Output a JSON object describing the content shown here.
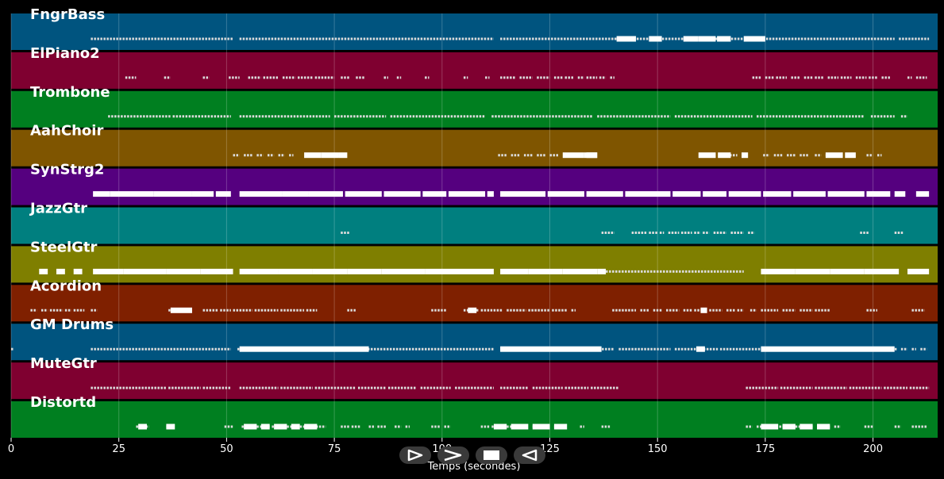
{
  "chart_data": {
    "type": "piano-roll",
    "xlabel": "Temps (secondes)",
    "xlim": [
      0,
      215
    ],
    "xticks": [
      0,
      25,
      50,
      75,
      100,
      125,
      150,
      175,
      200
    ],
    "grid": true,
    "tracks": [
      {
        "name": "FngrBass",
        "color": "#00547f",
        "segments": [
          [
            18.5,
            51.5
          ],
          [
            53,
            112
          ],
          [
            113.5,
            140
          ],
          [
            140,
            157
          ],
          [
            157.5,
            205
          ],
          [
            206,
            213
          ]
        ],
        "long": [
          [
            140.5,
            145
          ],
          [
            148,
            151
          ],
          [
            156,
            159.5
          ],
          [
            159.5,
            163.5
          ],
          [
            163.8,
            167
          ],
          [
            170,
            175
          ]
        ]
      },
      {
        "name": "ElPiano2",
        "color": "#7f0030",
        "segments": [
          [
            26.5,
            29
          ],
          [
            35.5,
            37
          ],
          [
            44.5,
            46
          ],
          [
            50.5,
            53
          ],
          [
            55,
            58
          ],
          [
            58.5,
            62
          ],
          [
            63,
            66
          ],
          [
            66.5,
            70
          ],
          [
            70.5,
            75
          ],
          [
            76.5,
            78.5
          ],
          [
            80,
            82
          ],
          [
            86.5,
            87.5
          ],
          [
            89.5,
            90.5
          ],
          [
            96,
            97
          ],
          [
            105,
            106
          ],
          [
            110,
            111
          ],
          [
            113.5,
            117
          ],
          [
            118,
            121
          ],
          [
            122,
            125
          ],
          [
            126,
            128
          ],
          [
            128.5,
            130.5
          ],
          [
            131.5,
            133
          ],
          [
            133.5,
            136
          ],
          [
            136.5,
            138
          ],
          [
            139,
            140
          ],
          [
            172,
            174
          ],
          [
            175,
            177
          ],
          [
            177.5,
            180
          ],
          [
            181,
            183
          ],
          [
            184,
            186
          ],
          [
            186.5,
            188.5
          ],
          [
            189.5,
            192
          ],
          [
            192.5,
            195
          ],
          [
            196,
            198.5
          ],
          [
            199,
            201
          ],
          [
            202,
            204
          ],
          [
            208,
            209
          ],
          [
            210,
            212.5
          ]
        ],
        "long": []
      },
      {
        "name": "Trombone",
        "color": "#007f20",
        "segments": [
          [
            22.5,
            37
          ],
          [
            37.5,
            51
          ],
          [
            53,
            74
          ],
          [
            75,
            87
          ],
          [
            88,
            110
          ],
          [
            111.5,
            135
          ],
          [
            136,
            153
          ],
          [
            154,
            172
          ],
          [
            173,
            198
          ],
          [
            199.5,
            205
          ],
          [
            206.5,
            208
          ]
        ],
        "long": []
      },
      {
        "name": "AahChoir",
        "color": "#7f5500",
        "segments": [
          [
            51.5,
            53
          ],
          [
            54,
            56
          ],
          [
            57,
            58.5
          ],
          [
            59.5,
            61
          ],
          [
            62,
            63.5
          ],
          [
            64.5,
            65.5
          ],
          [
            113,
            115
          ],
          [
            116,
            118
          ],
          [
            119,
            121
          ],
          [
            122,
            124
          ],
          [
            125,
            127
          ],
          [
            166,
            168.5
          ],
          [
            174.5,
            176
          ],
          [
            177,
            179
          ],
          [
            180,
            182
          ],
          [
            183,
            185
          ],
          [
            186.5,
            188
          ],
          [
            189,
            190.5
          ],
          [
            198.5,
            200
          ],
          [
            201,
            202
          ]
        ],
        "long": [
          [
            68,
            72
          ],
          [
            72,
            76
          ],
          [
            76,
            78
          ],
          [
            128,
            133
          ],
          [
            133,
            136
          ],
          [
            133.5,
            136
          ],
          [
            159.5,
            163.5
          ],
          [
            164,
            167
          ],
          [
            169.5,
            171
          ],
          [
            189,
            193
          ],
          [
            193.5,
            196
          ]
        ]
      },
      {
        "name": "SynStrg2",
        "color": "#55007f",
        "segments": [],
        "long": [
          [
            19,
            23
          ],
          [
            23,
            33
          ],
          [
            33,
            42
          ],
          [
            42,
            47
          ],
          [
            47.5,
            51
          ],
          [
            53,
            63
          ],
          [
            63,
            69
          ],
          [
            69,
            77
          ],
          [
            77.5,
            86
          ],
          [
            86.5,
            95
          ],
          [
            95.5,
            101
          ],
          [
            101.5,
            110
          ],
          [
            110.5,
            112
          ],
          [
            113.5,
            124
          ],
          [
            124.5,
            133
          ],
          [
            133.5,
            142
          ],
          [
            142.5,
            153
          ],
          [
            153.5,
            160
          ],
          [
            160.5,
            166
          ],
          [
            166.5,
            174
          ],
          [
            174.5,
            181
          ],
          [
            181.5,
            189
          ],
          [
            189.5,
            198
          ],
          [
            198.5,
            204
          ],
          [
            205,
            207.5
          ],
          [
            210,
            213
          ]
        ]
      },
      {
        "name": "JazzGtr",
        "color": "#007f7f",
        "segments": [
          [
            76.5,
            78.5
          ],
          [
            137,
            140
          ],
          [
            144,
            147.5
          ],
          [
            148,
            150
          ],
          [
            150.5,
            151.5
          ],
          [
            152.5,
            155
          ],
          [
            155.5,
            158
          ],
          [
            158.5,
            160
          ],
          [
            160.5,
            162
          ],
          [
            163,
            166
          ],
          [
            167,
            170
          ],
          [
            171,
            172.5
          ],
          [
            197,
            199
          ],
          [
            205,
            207
          ]
        ],
        "long": []
      },
      {
        "name": "SteelGtr",
        "color": "#7f7f00",
        "segments": [
          [
            138,
            170
          ]
        ],
        "long": [
          [
            6.5,
            8.5
          ],
          [
            10.5,
            12.5
          ],
          [
            14.5,
            16.5
          ],
          [
            19,
            26
          ],
          [
            26,
            36
          ],
          [
            36,
            44
          ],
          [
            44,
            51.5
          ],
          [
            53,
            62
          ],
          [
            62,
            70
          ],
          [
            70,
            78
          ],
          [
            78,
            86
          ],
          [
            86,
            96
          ],
          [
            96,
            104
          ],
          [
            104,
            112
          ],
          [
            113.5,
            120
          ],
          [
            120,
            128
          ],
          [
            128,
            136
          ],
          [
            136,
            138
          ],
          [
            174,
            182
          ],
          [
            182,
            190
          ],
          [
            190,
            198
          ],
          [
            198,
            206
          ],
          [
            208,
            213
          ]
        ]
      },
      {
        "name": "Acordion",
        "color": "#7f2000",
        "segments": [
          [
            4.5,
            6
          ],
          [
            7,
            8.5
          ],
          [
            9,
            12
          ],
          [
            12.5,
            14
          ],
          [
            14.5,
            17
          ],
          [
            18.5,
            20
          ],
          [
            36.5,
            40
          ],
          [
            44.5,
            48
          ],
          [
            48.5,
            51
          ],
          [
            51.5,
            56
          ],
          [
            56.5,
            62
          ],
          [
            62.5,
            68
          ],
          [
            68.5,
            71
          ],
          [
            78,
            80
          ],
          [
            97.5,
            101
          ],
          [
            105,
            108.5
          ],
          [
            109,
            114
          ],
          [
            115,
            119.5
          ],
          [
            120,
            125
          ],
          [
            125.5,
            129
          ],
          [
            130,
            131
          ],
          [
            139.5,
            145
          ],
          [
            146,
            148
          ],
          [
            149,
            151
          ],
          [
            152,
            155
          ],
          [
            156,
            158
          ],
          [
            158.5,
            161
          ],
          [
            162,
            165
          ],
          [
            166,
            168
          ],
          [
            168.5,
            170
          ],
          [
            171.5,
            173
          ],
          [
            174,
            178
          ],
          [
            179,
            182
          ],
          [
            183,
            186
          ],
          [
            186.5,
            190
          ],
          [
            198.5,
            201
          ],
          [
            209,
            212
          ]
        ],
        "long": [
          [
            37,
            42
          ],
          [
            106,
            108
          ],
          [
            160,
            161.5
          ]
        ]
      },
      {
        "name": "GM Drums",
        "color": "#00547f",
        "segments": [
          [
            0,
            0.5
          ],
          [
            18.5,
            51
          ],
          [
            52.5,
            112
          ],
          [
            113.5,
            140
          ],
          [
            141,
            153
          ],
          [
            154,
            164
          ],
          [
            164.5,
            205.5
          ],
          [
            206.5,
            208
          ],
          [
            209,
            210
          ],
          [
            211,
            212.5
          ]
        ],
        "long": [
          [
            53,
            83
          ],
          [
            113.5,
            137
          ],
          [
            159,
            161
          ],
          [
            174,
            205
          ]
        ]
      },
      {
        "name": "MuteGtr",
        "color": "#7f0030",
        "segments": [
          [
            18.5,
            36
          ],
          [
            36.5,
            44
          ],
          [
            44.5,
            51
          ],
          [
            53,
            62
          ],
          [
            62.5,
            70
          ],
          [
            70.5,
            80
          ],
          [
            80.5,
            87
          ],
          [
            87.5,
            94
          ],
          [
            95,
            102
          ],
          [
            103,
            112
          ],
          [
            113.5,
            120
          ],
          [
            121,
            128
          ],
          [
            128.5,
            134
          ],
          [
            134.5,
            141
          ],
          [
            170.5,
            178
          ],
          [
            178.5,
            186
          ],
          [
            186.5,
            194
          ],
          [
            194.5,
            202
          ],
          [
            202.5,
            208
          ],
          [
            208.5,
            213
          ]
        ],
        "long": []
      },
      {
        "name": "Distortd",
        "color": "#007f20",
        "segments": [
          [
            29,
            32
          ],
          [
            36,
            38
          ],
          [
            49.5,
            51.5
          ],
          [
            53.5,
            56
          ],
          [
            57,
            60
          ],
          [
            60.5,
            63
          ],
          [
            64,
            66
          ],
          [
            67,
            69.5
          ],
          [
            70,
            73
          ],
          [
            76.5,
            78.5
          ],
          [
            79,
            81
          ],
          [
            83,
            84.5
          ],
          [
            85,
            87
          ],
          [
            89,
            90.5
          ],
          [
            91.5,
            92.5
          ],
          [
            97.5,
            99.5
          ],
          [
            100.5,
            102
          ],
          [
            109,
            111
          ],
          [
            111.5,
            114
          ],
          [
            115,
            117.5
          ],
          [
            118,
            120
          ],
          [
            121,
            122.5
          ],
          [
            123,
            125
          ],
          [
            126,
            128.5
          ],
          [
            132,
            133
          ],
          [
            137,
            139
          ],
          [
            170.5,
            172
          ],
          [
            173,
            177
          ],
          [
            177.5,
            180
          ],
          [
            180.5,
            183
          ],
          [
            183.5,
            186
          ],
          [
            187,
            190
          ],
          [
            191,
            192.5
          ],
          [
            198,
            200
          ],
          [
            205,
            206.5
          ],
          [
            209,
            212.5
          ]
        ],
        "long": [
          [
            29.5,
            31.5
          ],
          [
            36,
            38
          ],
          [
            54,
            57
          ],
          [
            58,
            60
          ],
          [
            61,
            64
          ],
          [
            65,
            67
          ],
          [
            68,
            71
          ],
          [
            112,
            115
          ],
          [
            116,
            120
          ],
          [
            121,
            125
          ],
          [
            126,
            129
          ],
          [
            174,
            178
          ],
          [
            179,
            182
          ],
          [
            183,
            186
          ],
          [
            187,
            190
          ]
        ]
      }
    ]
  },
  "controls": [
    {
      "name": "play-button",
      "icon": "play-icon"
    },
    {
      "name": "forward-button",
      "icon": "forward-icon"
    },
    {
      "name": "stop-button",
      "icon": "stop-icon"
    },
    {
      "name": "rewind-button",
      "icon": "rewind-icon"
    }
  ]
}
